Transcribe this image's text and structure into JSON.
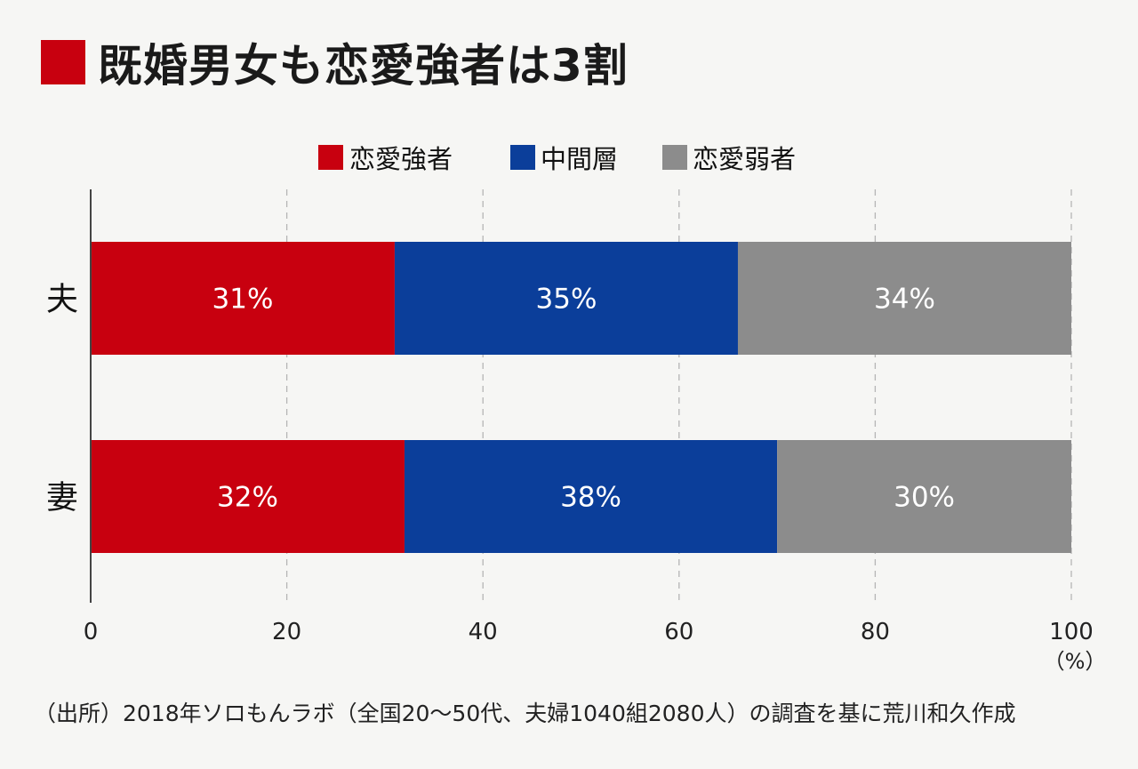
{
  "title": "既婚男女も恋愛強者は3割",
  "colors": {
    "title_square": "#c8000f",
    "strong": "#c8000f",
    "middle": "#0b3e9a",
    "weak": "#8c8c8c"
  },
  "chart_data": {
    "type": "bar",
    "orientation": "horizontal",
    "stacked": true,
    "categories": [
      "夫",
      "妻"
    ],
    "series": [
      {
        "name": "恋愛強者",
        "values": [
          31,
          32
        ],
        "labels": [
          "31%",
          "32%"
        ],
        "color": "#c8000f"
      },
      {
        "name": "中間層",
        "values": [
          35,
          38
        ],
        "labels": [
          "35%",
          "38%"
        ],
        "color": "#0b3e9a"
      },
      {
        "name": "恋愛弱者",
        "values": [
          34,
          30
        ],
        "labels": [
          "34%",
          "30%"
        ],
        "color": "#8c8c8c"
      }
    ],
    "xlim": [
      0,
      100
    ],
    "xticks": [
      "0",
      "20",
      "40",
      "60",
      "80",
      "100"
    ],
    "xunit": "（%）",
    "grid": true,
    "legend": "top-center"
  },
  "source": "（出所）2018年ソロもんラボ（全国20〜50代、夫婦1040組2080人）の調査を基に荒川和久作成"
}
